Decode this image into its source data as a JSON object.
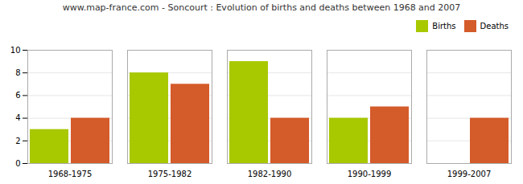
{
  "chart_data": {
    "type": "bar",
    "title": "www.map-france.com - Soncourt : Evolution of births and deaths between 1968 and 2007",
    "categories": [
      "1968-1975",
      "1975-1982",
      "1982-1990",
      "1990-1999",
      "1999-2007"
    ],
    "series": [
      {
        "name": "Births",
        "color": "#a8c800",
        "values": [
          3,
          8,
          9,
          4,
          0
        ]
      },
      {
        "name": "Deaths",
        "color": "#d45b2a",
        "values": [
          4,
          7,
          4,
          5,
          4
        ]
      }
    ],
    "ylim": [
      0,
      10
    ],
    "yticks": [
      0,
      2,
      4,
      6,
      8,
      10
    ],
    "grid": true,
    "legend": "upper right"
  }
}
